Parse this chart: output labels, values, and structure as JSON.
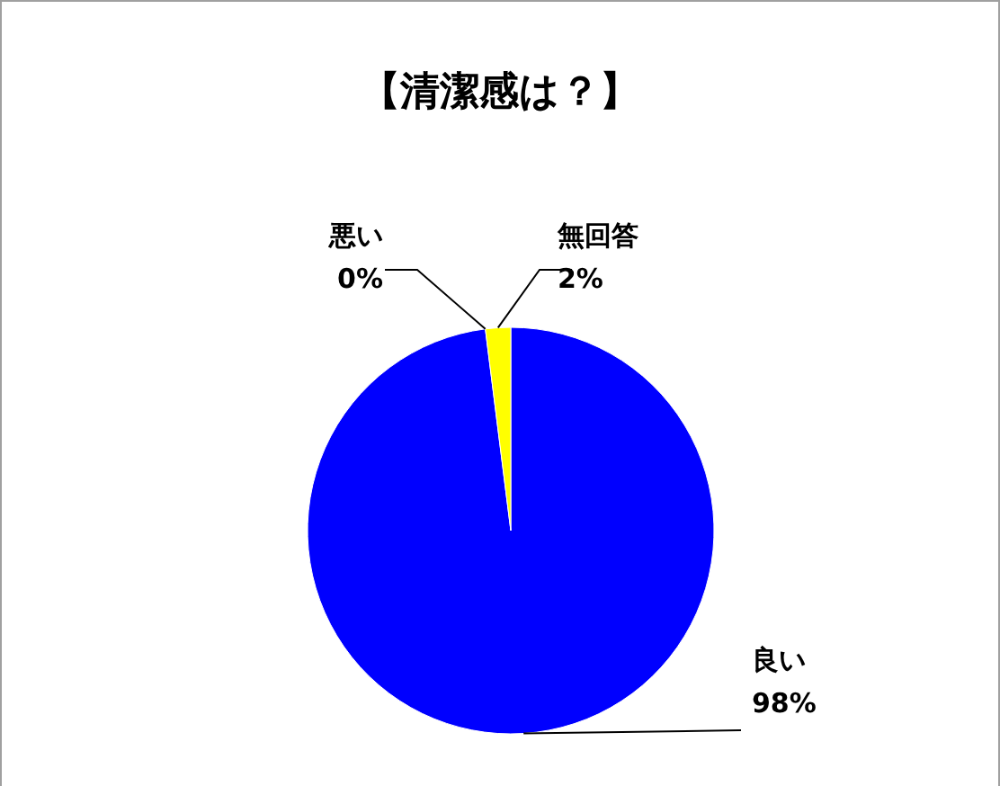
{
  "chart_data": {
    "type": "pie",
    "title": "【清潔感は？】",
    "categories": [
      "良い",
      "悪い",
      "無回答"
    ],
    "values": [
      98,
      0,
      2
    ],
    "value_labels": [
      "98%",
      "0%",
      "2%"
    ],
    "colors": [
      "#0000ff",
      "#ff0000",
      "#ffff00"
    ]
  }
}
